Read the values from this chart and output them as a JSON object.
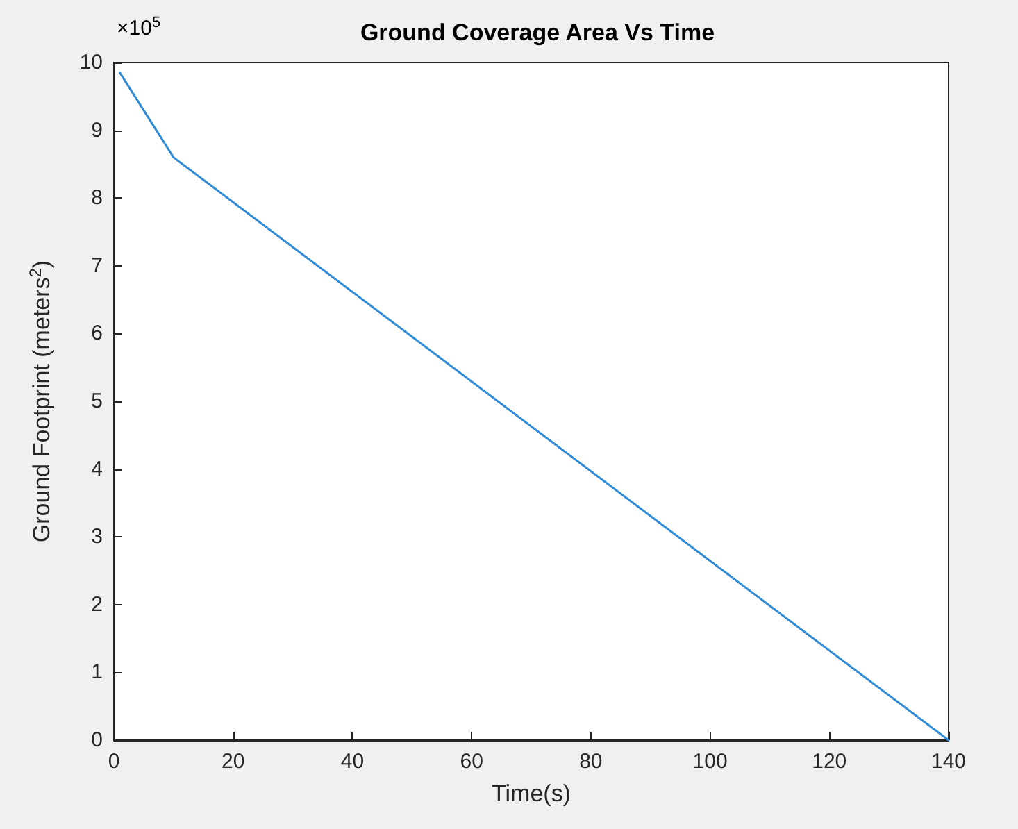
{
  "chart_data": {
    "type": "line",
    "title": "Ground Coverage Area Vs Time",
    "xlabel": "Time(s)",
    "ylabel": "Ground Footprint (meters$^{2}$)",
    "annotations": [
      "×10$^{5}$"
    ],
    "x": [
      1,
      10,
      140
    ],
    "series": [
      {
        "color": "#2f8bd6",
        "values": [
          9.85,
          8.6,
          0
        ]
      }
    ],
    "xlim": [
      0,
      140
    ],
    "xticks": [
      0,
      20,
      40,
      60,
      80,
      100,
      120,
      140
    ],
    "ylim": [
      0,
      10
    ],
    "yticks": [
      0,
      1,
      2,
      3,
      4,
      5,
      6,
      7,
      8,
      9,
      10
    ],
    "grid": false,
    "marker": "none",
    "line_style": "solid"
  }
}
